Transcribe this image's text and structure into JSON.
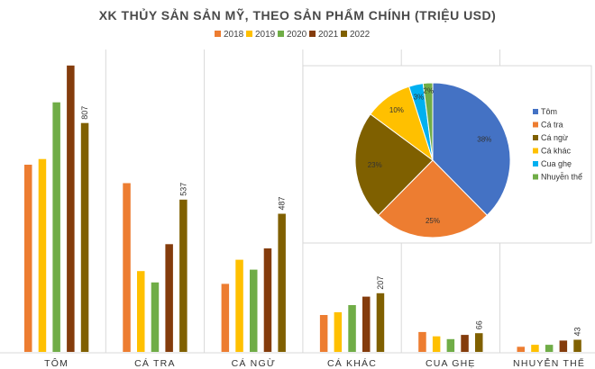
{
  "chart_data": [
    {
      "type": "bar",
      "title": "XK THỦY SẢN SẢN MỸ, THEO SẢN PHẨM CHÍNH (TRIỆU USD)",
      "categories": [
        "TÔM",
        "CÁ TRA",
        "CÁ NGỪ",
        "CÁ KHÁC",
        "CUA GHẸ",
        "NHUYỄN THỂ"
      ],
      "series": [
        {
          "name": "2018",
          "color": "#ED7D31",
          "values": [
            660,
            595,
            240,
            130,
            70,
            18
          ]
        },
        {
          "name": "2019",
          "color": "#FFC000",
          "values": [
            680,
            285,
            325,
            140,
            55,
            25
          ]
        },
        {
          "name": "2020",
          "color": "#70AD47",
          "values": [
            880,
            245,
            290,
            165,
            45,
            25
          ]
        },
        {
          "name": "2021",
          "color": "#843C0C",
          "values": [
            1010,
            380,
            365,
            195,
            60,
            40
          ]
        },
        {
          "name": "2022",
          "color": "#806000",
          "values": [
            807,
            537,
            487,
            207,
            66,
            43
          ]
        }
      ],
      "data_labels": {
        "series": "2022",
        "values": [
          "807",
          "537",
          "487",
          "207",
          "66",
          "43"
        ]
      },
      "ylim": [
        0,
        1060
      ],
      "grid": false,
      "legend": "top"
    },
    {
      "type": "pie",
      "slices": [
        {
          "name": "Tôm",
          "value": 38,
          "label": "38%",
          "color": "#4472C4"
        },
        {
          "name": "Cá tra",
          "value": 25,
          "label": "25%",
          "color": "#ED7D31"
        },
        {
          "name": "Cá ngừ",
          "value": 23,
          "label": "23%",
          "color": "#7F6000"
        },
        {
          "name": "Cá khác",
          "value": 10,
          "label": "10%",
          "color": "#FFC000"
        },
        {
          "name": "Cua ghẹ",
          "value": 3,
          "label": "3%",
          "color": "#00B0F0"
        },
        {
          "name": "Nhuyễn thể",
          "value": 2,
          "label": "2%",
          "color": "#70AD47"
        }
      ],
      "legend": "right"
    }
  ]
}
